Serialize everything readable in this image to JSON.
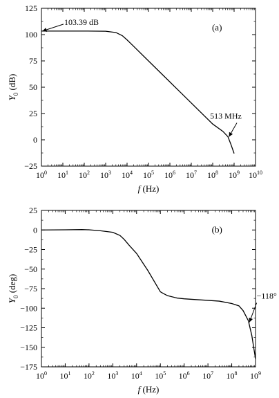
{
  "chart_data": [
    {
      "type": "line",
      "panel_label": "(a)",
      "xlabel": {
        "var": "f",
        "unit": "(Hz)"
      },
      "ylabel": {
        "var": "Y",
        "sub": "0",
        "unit": "(dB)"
      },
      "xscale": "log",
      "xlim": [
        1,
        10000000000.0
      ],
      "ylim": [
        -25,
        125
      ],
      "x_ticks": [
        {
          "base": "10",
          "exp": "0"
        },
        {
          "base": "10",
          "exp": "1"
        },
        {
          "base": "10",
          "exp": "2"
        },
        {
          "base": "10",
          "exp": "3"
        },
        {
          "base": "10",
          "exp": "4"
        },
        {
          "base": "10",
          "exp": "5"
        },
        {
          "base": "10",
          "exp": "6"
        },
        {
          "base": "10",
          "exp": "7"
        },
        {
          "base": "10",
          "exp": "8"
        },
        {
          "base": "10",
          "exp": "9"
        },
        {
          "base": "10",
          "exp": "10"
        }
      ],
      "y_ticks": [
        "125",
        "100",
        "75",
        "50",
        "25",
        "0",
        "−25"
      ],
      "y_tick_values": [
        125,
        100,
        75,
        50,
        25,
        0,
        -25
      ],
      "grid": false,
      "series": [
        {
          "x": [
            1,
            10,
            100,
            1000,
            3000,
            6000,
            10000,
            20000,
            100000,
            1000000,
            10000000,
            100000000,
            300000000,
            513000000,
            700000000,
            1000000000
          ],
          "y": [
            103.39,
            103.39,
            103.39,
            103.2,
            102,
            99,
            95,
            89,
            75,
            55,
            35,
            15,
            8,
            3,
            -4,
            -13
          ]
        }
      ],
      "annotations": [
        {
          "text": "103.39 dB",
          "x": 1,
          "y": 103.39
        },
        {
          "text": "513 MHz",
          "x": 513000000,
          "y": 3
        }
      ]
    },
    {
      "type": "line",
      "panel_label": "(b)",
      "xlabel": {
        "var": "f",
        "unit": "(Hz)"
      },
      "ylabel": {
        "var": "Y",
        "sub": "0",
        "unit": "(deg)"
      },
      "xscale": "log",
      "xlim": [
        1,
        1000000000.0
      ],
      "ylim": [
        -175,
        25
      ],
      "x_ticks": [
        {
          "base": "10",
          "exp": "0"
        },
        {
          "base": "10",
          "exp": "1"
        },
        {
          "base": "10",
          "exp": "2"
        },
        {
          "base": "10",
          "exp": "3"
        },
        {
          "base": "10",
          "exp": "4"
        },
        {
          "base": "10",
          "exp": "5"
        },
        {
          "base": "10",
          "exp": "6"
        },
        {
          "base": "10",
          "exp": "7"
        },
        {
          "base": "10",
          "exp": "8"
        },
        {
          "base": "10",
          "exp": "9"
        }
      ],
      "y_ticks": [
        "25",
        "0",
        "−25",
        "−50",
        "−75",
        "−100",
        "−125",
        "−150",
        "−175"
      ],
      "y_tick_values": [
        25,
        0,
        -25,
        -50,
        -75,
        -100,
        -125,
        -150,
        -175
      ],
      "grid": false,
      "series": [
        {
          "x": [
            1,
            10,
            50,
            100,
            300,
            1000,
            2000,
            3000,
            5000,
            10000,
            30000,
            100000,
            130000,
            200000,
            500000,
            1000000,
            3000000,
            10000000,
            30000000,
            100000000,
            200000000,
            300000000,
            500000000,
            700000000,
            1000000000
          ],
          "y": [
            0,
            0.2,
            0.5,
            0.2,
            -1,
            -3,
            -7,
            -12,
            -20,
            -30,
            -52,
            -79,
            -81,
            -84,
            -87,
            -88,
            -89,
            -90,
            -91,
            -94,
            -97,
            -103,
            -116,
            -135,
            -165
          ]
        }
      ],
      "annotations": [
        {
          "text": "−118°",
          "x": 500000000,
          "y": -118
        }
      ]
    }
  ]
}
